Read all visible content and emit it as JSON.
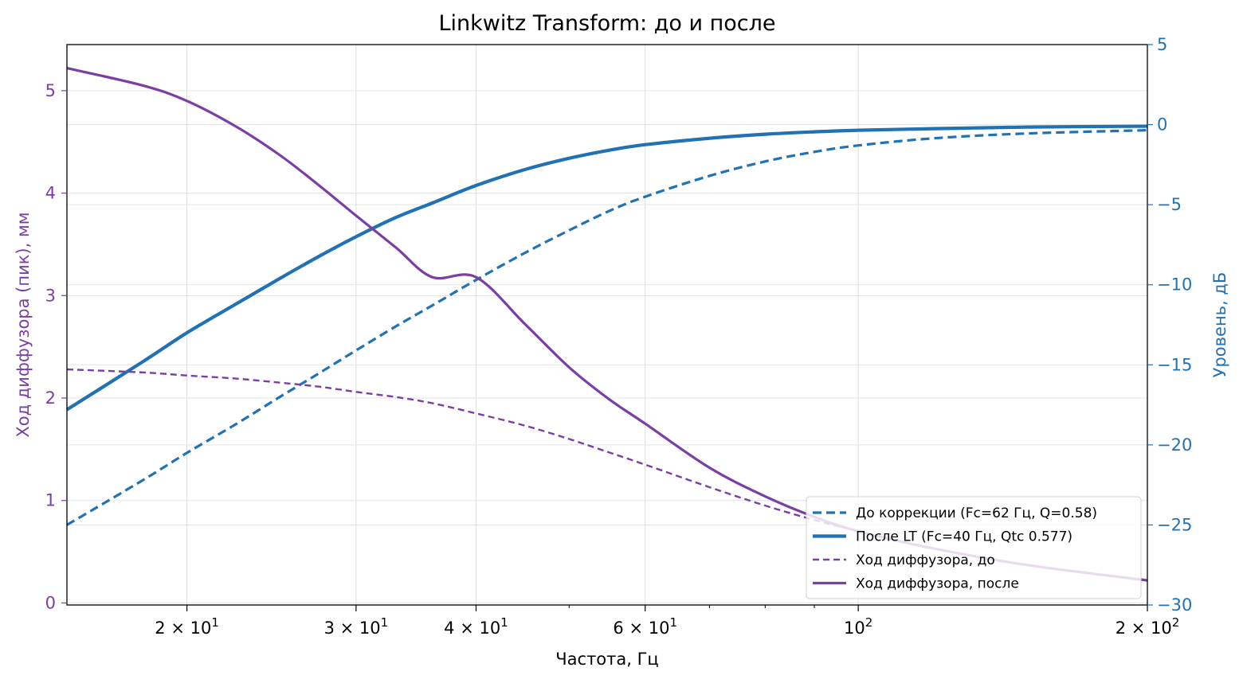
{
  "chart_data": {
    "type": "line",
    "title": "Linkwitz Transform: до и после",
    "xlabel": "Частота, Гц",
    "ylabel_left": "Ход диффузора (пик), мм",
    "ylabel_right": "Уровень, дБ",
    "x_scale": "log",
    "xlim": [
      15,
      200
    ],
    "ylim_left": [
      -0.02,
      5.45
    ],
    "ylim_right": [
      -30,
      5
    ],
    "x_ticks_major": [
      {
        "value": 20,
        "mantissa": "2",
        "exp": "1"
      },
      {
        "value": 30,
        "mantissa": "3",
        "exp": "1"
      },
      {
        "value": 40,
        "mantissa": "4",
        "exp": "1"
      },
      {
        "value": 60,
        "mantissa": "6",
        "exp": "1"
      },
      {
        "value": 100,
        "mantissa": "",
        "exp": "2"
      },
      {
        "value": 200,
        "mantissa": "2",
        "exp": "2"
      }
    ],
    "x_ticks_minor": [
      50,
      70,
      80,
      90
    ],
    "y_ticks_left": [
      "0",
      "1",
      "2",
      "3",
      "4",
      "5"
    ],
    "y_ticks_right": [
      "5",
      "0",
      "−5",
      "−10",
      "−15",
      "−20",
      "−25",
      "−30"
    ],
    "grid": true,
    "legend_position": "lower-right",
    "colors": {
      "response": "#2271b3",
      "excursion": "#7b3fa3"
    },
    "series": [
      {
        "name": "До коррекции (Fc=62 Гц, Q=0.58)",
        "axis": "right",
        "style": "dashed",
        "color": "#2271b3",
        "x": [
          15,
          18,
          20,
          22.5,
          25,
          27.5,
          30,
          33,
          36,
          40,
          45,
          50,
          55,
          60,
          70,
          80,
          90,
          100,
          120,
          150,
          200
        ],
        "y": [
          -25.0,
          -22.2,
          -20.5,
          -18.7,
          -17.0,
          -15.5,
          -14.1,
          -12.6,
          -11.3,
          -9.7,
          -8.0,
          -6.6,
          -5.4,
          -4.5,
          -3.2,
          -2.3,
          -1.7,
          -1.3,
          -0.85,
          -0.55,
          -0.35
        ]
      },
      {
        "name": "После LT (Fc=40 Гц, Qtc 0.577)",
        "axis": "right",
        "style": "solid",
        "color": "#2271b3",
        "x": [
          15,
          18,
          20,
          22.5,
          25,
          27.5,
          30,
          33,
          36,
          40,
          45,
          50,
          55,
          60,
          70,
          80,
          90,
          100,
          120,
          150,
          200
        ],
        "y": [
          -17.8,
          -14.8,
          -13.0,
          -11.2,
          -9.6,
          -8.2,
          -7.0,
          -5.8,
          -4.9,
          -3.8,
          -2.8,
          -2.1,
          -1.6,
          -1.25,
          -0.85,
          -0.6,
          -0.45,
          -0.35,
          -0.25,
          -0.15,
          -0.1
        ]
      },
      {
        "name": "Ход диффузора, до",
        "axis": "left",
        "style": "dashed",
        "color": "#7b3fa3",
        "x": [
          15,
          18,
          20,
          22.5,
          25,
          27.5,
          30,
          33,
          36,
          40,
          45,
          50,
          55,
          60,
          70,
          80,
          90,
          100,
          120,
          150,
          200
        ],
        "y": [
          2.28,
          2.25,
          2.22,
          2.19,
          2.15,
          2.11,
          2.06,
          2.01,
          1.95,
          1.85,
          1.73,
          1.6,
          1.47,
          1.35,
          1.13,
          0.95,
          0.81,
          0.7,
          0.53,
          0.37,
          0.22
        ]
      },
      {
        "name": "Ход диффузора, после",
        "axis": "left",
        "style": "solid",
        "color": "#7b3fa3",
        "x": [
          15,
          18,
          20,
          22.5,
          25,
          27.5,
          30,
          33,
          36,
          40,
          45,
          50,
          55,
          60,
          70,
          80,
          90,
          100,
          120,
          150,
          200
        ],
        "y": [
          5.22,
          5.05,
          4.9,
          4.65,
          4.37,
          4.07,
          3.78,
          3.47,
          3.18,
          3.18,
          2.72,
          2.3,
          1.99,
          1.75,
          1.32,
          1.04,
          0.84,
          0.7,
          0.53,
          0.37,
          0.22
        ]
      }
    ]
  }
}
